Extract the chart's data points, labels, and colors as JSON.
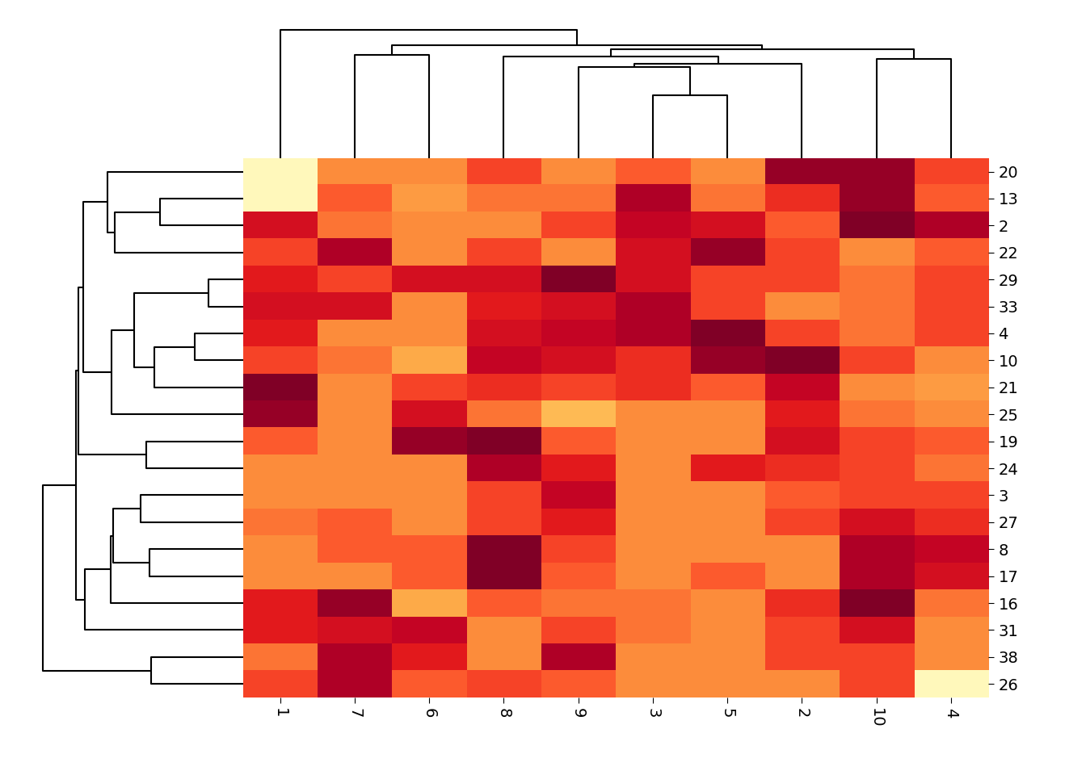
{
  "row_labels": [
    "13",
    "21",
    "10",
    "31",
    "16",
    "25",
    "38",
    "24",
    "27",
    "2",
    "22",
    "19",
    "17",
    "8",
    "3",
    "26",
    "20",
    "4",
    "33",
    "29"
  ],
  "col_labels": [
    "4",
    "6",
    "2",
    "9",
    "8",
    "3",
    "1",
    "7",
    "5",
    "10"
  ],
  "colormap": "YlOrRd",
  "vmin": 0.0,
  "vmax": 1.0,
  "matrix": [
    [
      0.6,
      0.45,
      0.7,
      0.55,
      0.55,
      0.9,
      0.05,
      0.6,
      0.55,
      0.95
    ],
    [
      0.45,
      0.65,
      0.85,
      0.65,
      0.7,
      0.7,
      1.0,
      0.5,
      0.6,
      0.5
    ],
    [
      0.5,
      0.4,
      1.0,
      0.8,
      0.85,
      0.7,
      0.65,
      0.55,
      0.95,
      0.65
    ],
    [
      0.5,
      0.85,
      0.65,
      0.65,
      0.5,
      0.55,
      0.75,
      0.8,
      0.5,
      0.8
    ],
    [
      0.55,
      0.4,
      0.7,
      0.55,
      0.6,
      0.55,
      0.75,
      0.95,
      0.5,
      1.0
    ],
    [
      0.5,
      0.8,
      0.75,
      0.35,
      0.55,
      0.5,
      0.95,
      0.5,
      0.5,
      0.55
    ],
    [
      0.5,
      0.75,
      0.65,
      0.9,
      0.5,
      0.5,
      0.55,
      0.9,
      0.5,
      0.65
    ],
    [
      0.55,
      0.5,
      0.7,
      0.75,
      0.9,
      0.5,
      0.5,
      0.5,
      0.75,
      0.65
    ],
    [
      0.7,
      0.5,
      0.65,
      0.75,
      0.65,
      0.5,
      0.55,
      0.6,
      0.5,
      0.8
    ],
    [
      0.9,
      0.5,
      0.6,
      0.65,
      0.5,
      0.85,
      0.8,
      0.55,
      0.8,
      1.0
    ],
    [
      0.6,
      0.5,
      0.65,
      0.5,
      0.65,
      0.8,
      0.65,
      0.9,
      0.95,
      0.5
    ],
    [
      0.6,
      0.95,
      0.8,
      0.6,
      1.0,
      0.5,
      0.6,
      0.5,
      0.5,
      0.65
    ],
    [
      0.8,
      0.6,
      0.5,
      0.6,
      1.0,
      0.5,
      0.5,
      0.5,
      0.6,
      0.9
    ],
    [
      0.85,
      0.6,
      0.5,
      0.65,
      1.0,
      0.5,
      0.5,
      0.6,
      0.5,
      0.9
    ],
    [
      0.65,
      0.5,
      0.6,
      0.85,
      0.65,
      0.5,
      0.5,
      0.5,
      0.5,
      0.65
    ],
    [
      0.05,
      0.6,
      0.5,
      0.6,
      0.65,
      0.5,
      0.65,
      0.9,
      0.5,
      0.65
    ],
    [
      0.65,
      0.5,
      0.95,
      0.5,
      0.65,
      0.6,
      0.05,
      0.5,
      0.5,
      0.95
    ],
    [
      0.65,
      0.5,
      0.65,
      0.85,
      0.8,
      0.9,
      0.75,
      0.5,
      1.0,
      0.55
    ],
    [
      0.65,
      0.5,
      0.5,
      0.8,
      0.75,
      0.9,
      0.8,
      0.8,
      0.65,
      0.55
    ],
    [
      0.65,
      0.8,
      0.65,
      1.0,
      0.8,
      0.8,
      0.75,
      0.65,
      0.65,
      0.55
    ]
  ]
}
